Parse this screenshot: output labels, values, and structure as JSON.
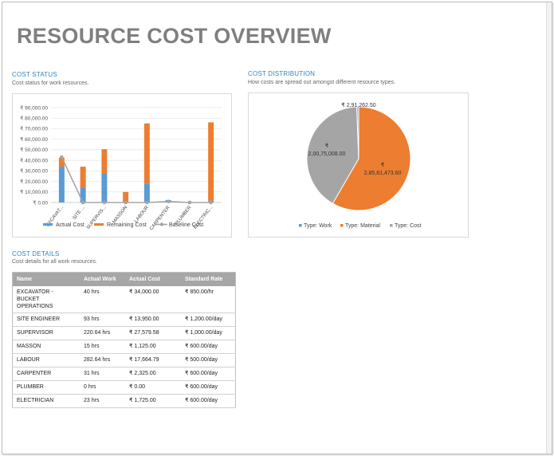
{
  "page": {
    "title": "RESOURCE COST OVERVIEW"
  },
  "cost_status": {
    "title": "COST STATUS",
    "subtitle": "Cost status for work resources."
  },
  "cost_distribution": {
    "title": "COST DISTRIBUTION",
    "subtitle": "How costs are spread out amongst different resource types."
  },
  "cost_details": {
    "title": "COST DETAILS",
    "subtitle": "Cost details for all work resources.",
    "headers": [
      "Name",
      "Actual Work",
      "Actual Cost",
      "Standard Rate"
    ],
    "rows": [
      [
        "EXCAVATOR - BUCKET OPERATIONS",
        "40 hrs",
        "₹ 34,000.00",
        "₹ 850.00/hr"
      ],
      [
        "SITE ENGINEER",
        "93 hrs",
        "₹ 13,950.00",
        "₹ 1,200.00/day"
      ],
      [
        "SUPERVISOR",
        "220.64 hrs",
        "₹ 27,579.58",
        "₹ 1,000.00/day"
      ],
      [
        "MASSON",
        "15 hrs",
        "₹ 1,125.00",
        "₹ 600.00/day"
      ],
      [
        "LABOUR",
        "282.64 hrs",
        "₹ 17,664.79",
        "₹ 500.00/day"
      ],
      [
        "CARPENTER",
        "31 hrs",
        "₹ 2,325.00",
        "₹ 600.00/day"
      ],
      [
        "PLUMBER",
        "0 hrs",
        "₹ 0.00",
        "₹ 600.00/day"
      ],
      [
        "ELECTRICIAN",
        "23 hrs",
        "₹ 1,725.00",
        "₹ 600.00/day"
      ]
    ]
  },
  "chart_data": [
    {
      "type": "bar",
      "stacked": true,
      "categories": [
        "EXCAVAT...",
        "SITE ...",
        "SUPERVIS...",
        "MASSON",
        "LABOUR",
        "CARPENTER",
        "PLUMBER",
        "ELECTRIC..."
      ],
      "y_tick_labels": [
        "₹ 0.00",
        "₹ 10,000.00",
        "₹ 20,000.00",
        "₹ 30,000.00",
        "₹ 40,000.00",
        "₹ 50,000.00",
        "₹ 60,000.00",
        "₹ 70,000.00",
        "₹ 80,000.00",
        "₹ 90,000.00"
      ],
      "ylim": [
        0,
        90000
      ],
      "series": [
        {
          "name": "Actual Cost",
          "kind": "bar",
          "color": "#5b9bd5",
          "values": [
            34000,
            13950,
            27580,
            1125,
            17665,
            2325,
            0,
            1725
          ]
        },
        {
          "name": "Remaining Cost",
          "kind": "bar",
          "color": "#ed7d31",
          "values": [
            8500,
            20000,
            23000,
            8900,
            57335,
            0,
            0,
            74275
          ]
        },
        {
          "name": "Baseline Cost",
          "kind": "line",
          "color": "#a5a5a5",
          "values": [
            43000,
            0,
            0,
            0,
            0,
            1000,
            0,
            0
          ]
        }
      ],
      "grid": true,
      "legend": "bottom"
    },
    {
      "type": "pie",
      "slices": [
        {
          "name": "Type: Work",
          "value": 0,
          "label": "",
          "color": "#5b9bd5"
        },
        {
          "name": "Type: Material",
          "value": 28561473.6,
          "label": "₹\n2,85,61,473.60",
          "color": "#ed7d31"
        },
        {
          "name": "Type: Cost",
          "value": 20075008.0,
          "label": "₹\n2,00,75,008.00",
          "color": "#a5a5a5"
        },
        {
          "name": "Type: Cost",
          "value": 291262.5,
          "label": "₹ 2,91,262.50",
          "color": "#a5a5a5"
        }
      ],
      "legend": "bottom"
    }
  ]
}
